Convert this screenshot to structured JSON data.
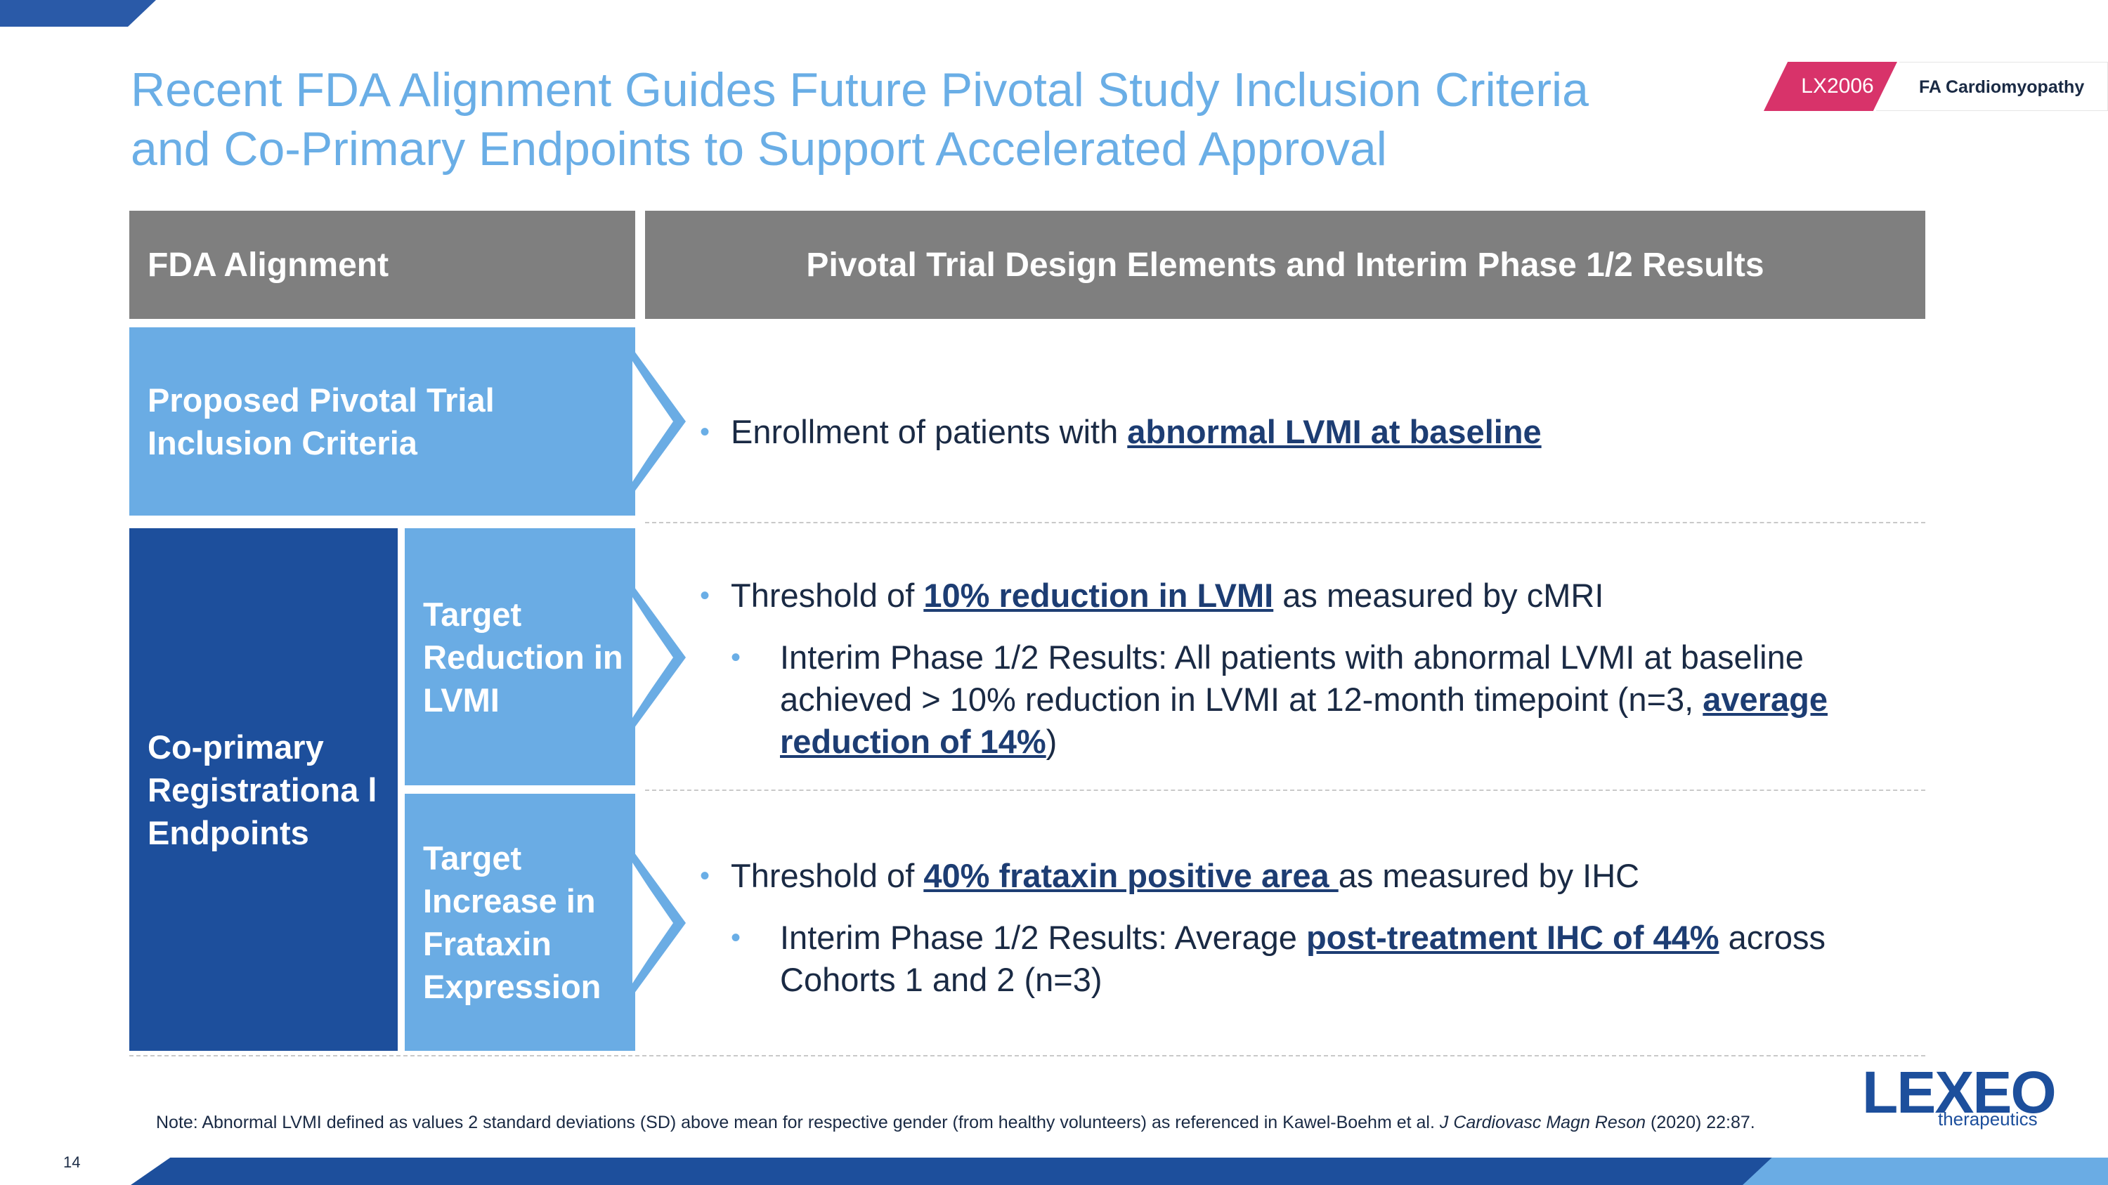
{
  "title_line1": "Recent FDA Alignment Guides Future Pivotal Study Inclusion Criteria",
  "title_line2": "and Co-Primary Endpoints to Support Accelerated Approval",
  "tag": {
    "product": "LX2006",
    "area": "FA Cardiomyopathy"
  },
  "table": {
    "header_left": "FDA Alignment",
    "header_right": "Pivotal Trial Design Elements and Interim Phase 1/2 Results",
    "inclusion_label": "Proposed Pivotal Trial Inclusion Criteria",
    "copri_label": "Co-primary Registrationa l Endpoints",
    "lvmi_label": "Target Reduction in LVMI",
    "frataxin_label": "Target Increase in Frataxin Expression"
  },
  "row1": {
    "b1_pre": "Enrollment of patients with ",
    "b1_hl": "abnormal LVMI at baseline"
  },
  "row2": {
    "b1_pre": "Threshold of ",
    "b1_hl": "10% reduction in LVMI",
    "b1_post": " as measured by cMRI",
    "b2_pre": "Interim Phase 1/2 Results: All patients with abnormal LVMI at baseline achieved > 10% reduction in LVMI at 12-month timepoint (n=3, ",
    "b2_hl": "average reduction of 14%",
    "b2_post": ")"
  },
  "row3": {
    "b1_pre": "Threshold of ",
    "b1_hl": "40% frataxin positive area ",
    "b1_post": "as measured by IHC",
    "b2_pre": "Interim Phase 1/2 Results: Average ",
    "b2_hl": "post-treatment IHC of 44%",
    "b2_post": " across Cohorts 1 and 2 (n=3)"
  },
  "note": {
    "text": "Note: Abnormal LVMI defined as values 2 standard deviations (SD) above mean for respective gender (from healthy volunteers) as referenced in Kawel‑Boehm et al. ",
    "journal": "J Cardiovasc Magn Reson",
    "citation": " (2020) 22:87."
  },
  "page_number": "14",
  "logo": {
    "main": "LEXEO",
    "sub": "therapeutics"
  },
  "colors": {
    "title": "#6aaee6",
    "header_gray": "#7f7f7f",
    "light_blue": "#6aace4",
    "dark_blue": "#1d4f9c",
    "magenta": "#d8336a"
  }
}
